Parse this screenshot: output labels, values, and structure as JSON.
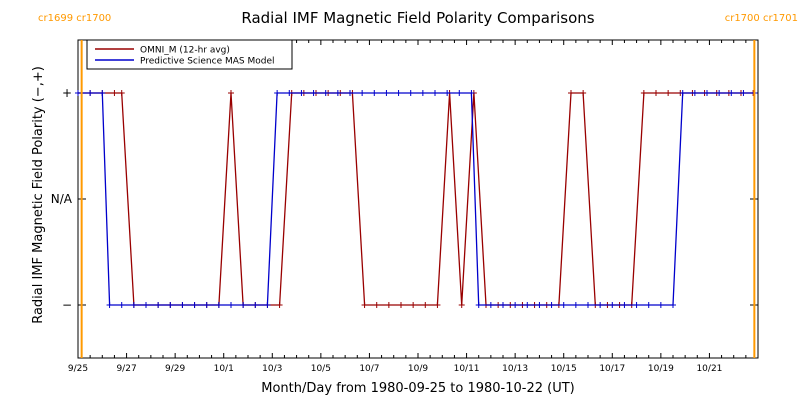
{
  "chart_data": {
    "type": "line",
    "title": "Radial IMF Magnetic Field Polarity Comparisons",
    "xlabel": "Month/Day from 1980-09-25 to 1980-10-22 (UT)",
    "ylabel": "Radial IMF Magnetic Field Polarity (−,+)",
    "x_unit": "days",
    "xlim": [
      0,
      28
    ],
    "ylim": [
      -1.5,
      1.5
    ],
    "x_ticks": [
      {
        "x": 0,
        "label": "9/25"
      },
      {
        "x": 2,
        "label": "9/27"
      },
      {
        "x": 4,
        "label": "9/29"
      },
      {
        "x": 6,
        "label": "10/1"
      },
      {
        "x": 8,
        "label": "10/3"
      },
      {
        "x": 10,
        "label": "10/5"
      },
      {
        "x": 12,
        "label": "10/7"
      },
      {
        "x": 14,
        "label": "10/9"
      },
      {
        "x": 16,
        "label": "10/11"
      },
      {
        "x": 18,
        "label": "10/13"
      },
      {
        "x": 20,
        "label": "10/15"
      },
      {
        "x": 22,
        "label": "10/17"
      },
      {
        "x": 24,
        "label": "10/19"
      },
      {
        "x": 26,
        "label": "10/21"
      }
    ],
    "y_ticks": [
      {
        "y": 1,
        "label": "+"
      },
      {
        "y": 0,
        "label": "N/A"
      },
      {
        "y": -1,
        "label": "−"
      }
    ],
    "carrington_markers": [
      {
        "x": 0.15,
        "label": "cr1699 cr1700",
        "color": "#ff9900",
        "side": "left"
      },
      {
        "x": 27.85,
        "label": "cr1700 cr1701",
        "color": "#ff9900",
        "side": "right"
      }
    ],
    "legend": {
      "placement": "top-left"
    },
    "series": [
      {
        "name": "OMNI_M (12-hr avg)",
        "color": "#990000",
        "marker": "+",
        "points": [
          [
            0.0,
            1
          ],
          [
            0.5,
            1
          ],
          [
            1.0,
            1
          ],
          [
            1.5,
            1
          ],
          [
            1.8,
            1
          ],
          [
            2.3,
            -1
          ],
          [
            2.8,
            -1
          ],
          [
            3.3,
            -1
          ],
          [
            3.8,
            -1
          ],
          [
            4.3,
            -1
          ],
          [
            4.8,
            -1
          ],
          [
            5.3,
            -1
          ],
          [
            5.8,
            -1
          ],
          [
            6.3,
            1
          ],
          [
            6.8,
            -1
          ],
          [
            7.3,
            -1
          ],
          [
            7.8,
            -1
          ],
          [
            8.3,
            -1
          ],
          [
            8.8,
            1
          ],
          [
            9.3,
            1
          ],
          [
            9.8,
            1
          ],
          [
            10.3,
            1
          ],
          [
            10.8,
            1
          ],
          [
            11.3,
            1
          ],
          [
            11.8,
            -1
          ],
          [
            12.3,
            -1
          ],
          [
            12.8,
            -1
          ],
          [
            13.3,
            -1
          ],
          [
            13.8,
            -1
          ],
          [
            14.3,
            -1
          ],
          [
            14.8,
            -1
          ],
          [
            15.3,
            1
          ],
          [
            15.8,
            -1
          ],
          [
            16.3,
            1
          ],
          [
            16.8,
            -1
          ],
          [
            17.3,
            -1
          ],
          [
            17.8,
            -1
          ],
          [
            18.3,
            -1
          ],
          [
            18.8,
            -1
          ],
          [
            19.3,
            -1
          ],
          [
            19.8,
            -1
          ],
          [
            20.3,
            1
          ],
          [
            20.8,
            1
          ],
          [
            21.3,
            -1
          ],
          [
            21.8,
            -1
          ],
          [
            22.3,
            -1
          ],
          [
            22.8,
            -1
          ],
          [
            23.3,
            1
          ],
          [
            23.8,
            1
          ],
          [
            24.3,
            1
          ],
          [
            24.8,
            1
          ],
          [
            25.3,
            1
          ],
          [
            25.8,
            1
          ],
          [
            26.3,
            1
          ],
          [
            26.8,
            1
          ],
          [
            27.3,
            1
          ],
          [
            27.8,
            1
          ]
        ]
      },
      {
        "name": "Predictive Science MAS Model",
        "color": "#0000cc",
        "marker": "+",
        "points": [
          [
            0.0,
            1
          ],
          [
            0.5,
            1
          ],
          [
            1.0,
            1
          ],
          [
            1.3,
            -1
          ],
          [
            1.8,
            -1
          ],
          [
            2.3,
            -1
          ],
          [
            2.8,
            -1
          ],
          [
            3.3,
            -1
          ],
          [
            3.8,
            -1
          ],
          [
            4.3,
            -1
          ],
          [
            4.8,
            -1
          ],
          [
            5.3,
            -1
          ],
          [
            5.8,
            -1
          ],
          [
            6.3,
            -1
          ],
          [
            6.8,
            -1
          ],
          [
            7.3,
            -1
          ],
          [
            7.8,
            -1
          ],
          [
            8.2,
            1
          ],
          [
            8.7,
            1
          ],
          [
            9.2,
            1
          ],
          [
            9.7,
            1
          ],
          [
            10.2,
            1
          ],
          [
            10.7,
            1
          ],
          [
            11.2,
            1
          ],
          [
            11.7,
            1
          ],
          [
            12.2,
            1
          ],
          [
            12.7,
            1
          ],
          [
            13.2,
            1
          ],
          [
            13.7,
            1
          ],
          [
            14.2,
            1
          ],
          [
            14.7,
            1
          ],
          [
            15.2,
            1
          ],
          [
            15.7,
            1
          ],
          [
            16.2,
            1
          ],
          [
            16.5,
            -1
          ],
          [
            17.0,
            -1
          ],
          [
            17.5,
            -1
          ],
          [
            18.0,
            -1
          ],
          [
            18.5,
            -1
          ],
          [
            19.0,
            -1
          ],
          [
            19.5,
            -1
          ],
          [
            20.0,
            -1
          ],
          [
            20.5,
            -1
          ],
          [
            21.0,
            -1
          ],
          [
            21.5,
            -1
          ],
          [
            22.0,
            -1
          ],
          [
            22.5,
            -1
          ],
          [
            23.0,
            -1
          ],
          [
            23.5,
            -1
          ],
          [
            24.0,
            -1
          ],
          [
            24.5,
            -1
          ],
          [
            24.9,
            1
          ],
          [
            25.4,
            1
          ],
          [
            25.9,
            1
          ],
          [
            26.4,
            1
          ],
          [
            26.9,
            1
          ],
          [
            27.4,
            1
          ],
          [
            27.85,
            1
          ]
        ]
      }
    ]
  }
}
